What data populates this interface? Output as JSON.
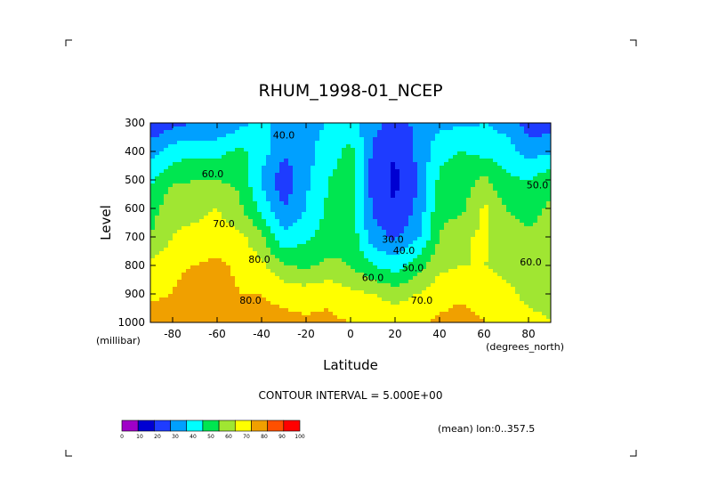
{
  "chart_data": {
    "type": "heatmap",
    "title": "RHUM_1998-01_NCEP",
    "xlabel": "Latitude",
    "xunits": "(degrees_north)",
    "ylabel": "Level",
    "yunits": "(millibar)",
    "xlim": [
      -90,
      90
    ],
    "ylim": [
      300,
      1000
    ],
    "y_inverted": true,
    "xticks": [
      -80,
      -60,
      -40,
      -20,
      0,
      20,
      40,
      60,
      80
    ],
    "yticks": [
      300,
      400,
      500,
      600,
      700,
      800,
      900,
      1000
    ],
    "contour_interval_text": "CONTOUR INTERVAL = 5.000E+00",
    "mean_text": "(mean) lon:0..357.5",
    "colorbar": {
      "ticks": [
        0,
        10,
        20,
        30,
        40,
        50,
        60,
        70,
        80,
        90,
        100
      ],
      "colors": [
        "#a000c8",
        "#0000d2",
        "#1e3cff",
        "#00a0ff",
        "#00ffff",
        "#00e650",
        "#a0e632",
        "#ffff00",
        "#f0a000",
        "#ff5000",
        "#ff0000"
      ]
    },
    "bands": [
      {
        "level": 0,
        "color": "#a000c8"
      },
      {
        "level": 10,
        "color": "#0000d2"
      },
      {
        "level": 20,
        "color": "#1e3cff"
      },
      {
        "level": 30,
        "color": "#00a0ff"
      },
      {
        "level": 40,
        "color": "#00ffff"
      },
      {
        "level": 50,
        "color": "#00e650"
      },
      {
        "level": 60,
        "color": "#a0e632"
      },
      {
        "level": 70,
        "color": "#ffff00"
      },
      {
        "level": 80,
        "color": "#f0a000"
      },
      {
        "level": 90,
        "color": "#ff5000"
      },
      {
        "level": 100,
        "color": "#ff0000"
      }
    ],
    "lat": [
      -90,
      -80,
      -70,
      -60,
      -50,
      -40,
      -30,
      -20,
      -10,
      0,
      10,
      20,
      30,
      40,
      50,
      60,
      70,
      80,
      90
    ],
    "levels": [
      300,
      400,
      500,
      600,
      700,
      800,
      900,
      1000
    ],
    "values": [
      [
        22,
        27,
        30,
        30,
        37,
        42,
        38,
        38,
        40,
        45,
        34,
        26,
        32,
        38,
        38,
        40,
        36,
        25,
        24
      ],
      [
        35,
        45,
        47,
        47,
        52,
        45,
        32,
        36,
        45,
        53,
        28,
        20,
        32,
        47,
        50,
        47,
        45,
        36,
        38
      ],
      [
        48,
        58,
        60,
        60,
        58,
        38,
        23,
        38,
        50,
        55,
        26,
        18,
        30,
        52,
        55,
        62,
        52,
        50,
        57
      ],
      [
        55,
        68,
        68,
        70,
        62,
        47,
        30,
        40,
        52,
        55,
        28,
        20,
        32,
        57,
        57,
        72,
        60,
        55,
        62
      ],
      [
        60,
        70,
        72,
        75,
        73,
        62,
        42,
        48,
        55,
        57,
        35,
        28,
        38,
        60,
        68,
        72,
        65,
        62,
        65
      ],
      [
        72,
        78,
        80,
        82,
        78,
        72,
        60,
        58,
        62,
        60,
        50,
        45,
        55,
        68,
        70,
        70,
        68,
        65,
        65
      ],
      [
        78,
        80,
        85,
        85,
        80,
        80,
        78,
        75,
        78,
        72,
        70,
        65,
        70,
        75,
        78,
        75,
        72,
        68,
        68
      ],
      [
        85,
        85,
        90,
        90,
        85,
        82,
        82,
        82,
        82,
        80,
        80,
        78,
        78,
        82,
        85,
        80,
        75,
        72,
        70
      ]
    ],
    "contour_labels": [
      {
        "text": "40.0",
        "lat": -30,
        "lev": 355
      },
      {
        "text": "60.0",
        "lat": -62,
        "lev": 490
      },
      {
        "text": "70.0",
        "lat": -57,
        "lev": 665
      },
      {
        "text": "80.0",
        "lat": -41,
        "lev": 790
      },
      {
        "text": "80.0",
        "lat": -45,
        "lev": 935
      },
      {
        "text": "30.0",
        "lat": 19,
        "lev": 720
      },
      {
        "text": "40.0",
        "lat": 24,
        "lev": 760
      },
      {
        "text": "50.0",
        "lat": 28,
        "lev": 820
      },
      {
        "text": "60.0",
        "lat": 10,
        "lev": 855
      },
      {
        "text": "70.0",
        "lat": 32,
        "lev": 935
      },
      {
        "text": "50.0",
        "lat": 84,
        "lev": 530
      },
      {
        "text": "60.0",
        "lat": 81,
        "lev": 800
      }
    ]
  }
}
